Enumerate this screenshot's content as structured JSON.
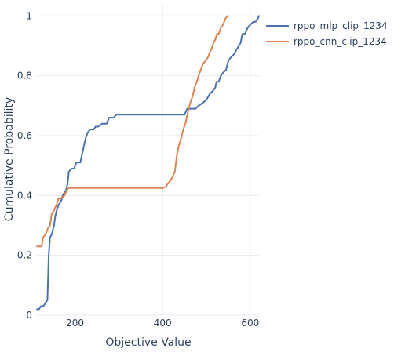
{
  "chart_data": {
    "type": "line",
    "xlabel": "Objective Value",
    "ylabel": "Cumulative Probability",
    "xlim": [
      113,
      620
    ],
    "ylim": [
      0,
      1.04
    ],
    "x_ticks": [
      {
        "value": 200,
        "label": "200"
      },
      {
        "value": 400,
        "label": "400"
      },
      {
        "value": 600,
        "label": "600"
      }
    ],
    "y_ticks": [
      {
        "value": 0,
        "label": "0"
      },
      {
        "value": 0.2,
        "label": "0.2"
      },
      {
        "value": 0.4,
        "label": "0.4"
      },
      {
        "value": 0.6,
        "label": "0.6"
      },
      {
        "value": 0.8,
        "label": "0.8"
      },
      {
        "value": 1,
        "label": "1"
      }
    ],
    "grid": true,
    "legend_position": "top-right outside",
    "series": [
      {
        "name": "rppo_mlp_clip_1234",
        "color": "#4c72b0",
        "points": [
          [
            113,
            0.02
          ],
          [
            118,
            0.02
          ],
          [
            122,
            0.03
          ],
          [
            128,
            0.03
          ],
          [
            132,
            0.04
          ],
          [
            137,
            0.05
          ],
          [
            140,
            0.2
          ],
          [
            143,
            0.26
          ],
          [
            147,
            0.27
          ],
          [
            152,
            0.3
          ],
          [
            155,
            0.33
          ],
          [
            158,
            0.35
          ],
          [
            163,
            0.37
          ],
          [
            168,
            0.38
          ],
          [
            172,
            0.4
          ],
          [
            176,
            0.41
          ],
          [
            180,
            0.42
          ],
          [
            183,
            0.44
          ],
          [
            186,
            0.48
          ],
          [
            192,
            0.49
          ],
          [
            198,
            0.49
          ],
          [
            203,
            0.51
          ],
          [
            212,
            0.51
          ],
          [
            218,
            0.55
          ],
          [
            224,
            0.59
          ],
          [
            229,
            0.61
          ],
          [
            234,
            0.62
          ],
          [
            242,
            0.62
          ],
          [
            247,
            0.63
          ],
          [
            253,
            0.63
          ],
          [
            262,
            0.64
          ],
          [
            272,
            0.64
          ],
          [
            278,
            0.66
          ],
          [
            288,
            0.66
          ],
          [
            294,
            0.67
          ],
          [
            305,
            0.67
          ],
          [
            330,
            0.67
          ],
          [
            380,
            0.67
          ],
          [
            430,
            0.67
          ],
          [
            450,
            0.67
          ],
          [
            456,
            0.69
          ],
          [
            475,
            0.69
          ],
          [
            482,
            0.7
          ],
          [
            492,
            0.71
          ],
          [
            500,
            0.72
          ],
          [
            508,
            0.74
          ],
          [
            515,
            0.75
          ],
          [
            520,
            0.76
          ],
          [
            523,
            0.78
          ],
          [
            528,
            0.78
          ],
          [
            533,
            0.8
          ],
          [
            538,
            0.81
          ],
          [
            545,
            0.82
          ],
          [
            550,
            0.85
          ],
          [
            555,
            0.86
          ],
          [
            562,
            0.87
          ],
          [
            570,
            0.89
          ],
          [
            574,
            0.9
          ],
          [
            578,
            0.91
          ],
          [
            582,
            0.94
          ],
          [
            588,
            0.94
          ],
          [
            594,
            0.96
          ],
          [
            600,
            0.97
          ],
          [
            607,
            0.98
          ],
          [
            612,
            0.98
          ],
          [
            617,
            0.99
          ],
          [
            620,
            1.0
          ]
        ]
      },
      {
        "name": "rppo_cnn_clip_1234",
        "color": "#dd8452",
        "points": [
          [
            113,
            0.23
          ],
          [
            124,
            0.23
          ],
          [
            127,
            0.26
          ],
          [
            133,
            0.27
          ],
          [
            138,
            0.29
          ],
          [
            143,
            0.3
          ],
          [
            147,
            0.34
          ],
          [
            152,
            0.35
          ],
          [
            158,
            0.37
          ],
          [
            162,
            0.39
          ],
          [
            168,
            0.39
          ],
          [
            176,
            0.4
          ],
          [
            182,
            0.42
          ],
          [
            186,
            0.425
          ],
          [
            220,
            0.425
          ],
          [
            300,
            0.425
          ],
          [
            400,
            0.425
          ],
          [
            408,
            0.43
          ],
          [
            412,
            0.44
          ],
          [
            418,
            0.45
          ],
          [
            422,
            0.46
          ],
          [
            428,
            0.48
          ],
          [
            432,
            0.53
          ],
          [
            436,
            0.56
          ],
          [
            442,
            0.59
          ],
          [
            447,
            0.62
          ],
          [
            452,
            0.64
          ],
          [
            455,
            0.66
          ],
          [
            458,
            0.68
          ],
          [
            463,
            0.71
          ],
          [
            468,
            0.73
          ],
          [
            473,
            0.76
          ],
          [
            478,
            0.78
          ],
          [
            482,
            0.8
          ],
          [
            487,
            0.82
          ],
          [
            492,
            0.84
          ],
          [
            498,
            0.85
          ],
          [
            503,
            0.86
          ],
          [
            508,
            0.88
          ],
          [
            512,
            0.89
          ],
          [
            516,
            0.91
          ],
          [
            520,
            0.92
          ],
          [
            524,
            0.94
          ],
          [
            528,
            0.94
          ],
          [
            533,
            0.96
          ],
          [
            538,
            0.97
          ],
          [
            543,
            0.99
          ],
          [
            548,
            1.0
          ]
        ]
      }
    ]
  }
}
